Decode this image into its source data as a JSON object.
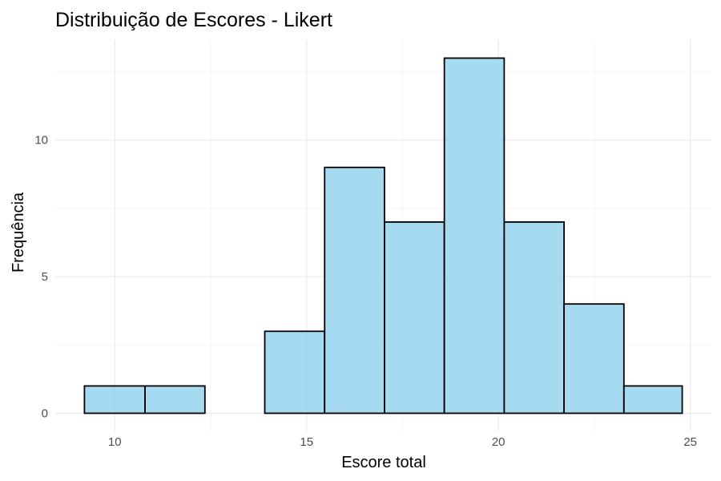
{
  "chart_data": {
    "type": "bar",
    "title": "Distribuição de Escores - Likert",
    "xlabel": "Escore total",
    "ylabel": "Frequência",
    "xlim": [
      8.45,
      25.55
    ],
    "ylim": [
      -0.66,
      13.66
    ],
    "x_ticks": [
      10,
      15,
      20,
      25
    ],
    "y_ticks": [
      0,
      5,
      10
    ],
    "grid": true,
    "bar_color": "#87CEEB",
    "bar_opacity": 0.75,
    "edge_color": "#000000",
    "bins": [
      {
        "x_start": 9.21,
        "x_end": 10.79,
        "count": 1
      },
      {
        "x_start": 10.79,
        "x_end": 12.35,
        "count": 1
      },
      {
        "x_start": 12.35,
        "x_end": 13.91,
        "count": 0
      },
      {
        "x_start": 13.91,
        "x_end": 15.47,
        "count": 3
      },
      {
        "x_start": 15.47,
        "x_end": 17.03,
        "count": 9
      },
      {
        "x_start": 17.03,
        "x_end": 18.59,
        "count": 7
      },
      {
        "x_start": 18.59,
        "x_end": 20.15,
        "count": 13
      },
      {
        "x_start": 20.15,
        "x_end": 21.71,
        "count": 7
      },
      {
        "x_start": 21.71,
        "x_end": 23.27,
        "count": 4
      },
      {
        "x_start": 23.27,
        "x_end": 24.79,
        "count": 1
      }
    ]
  }
}
